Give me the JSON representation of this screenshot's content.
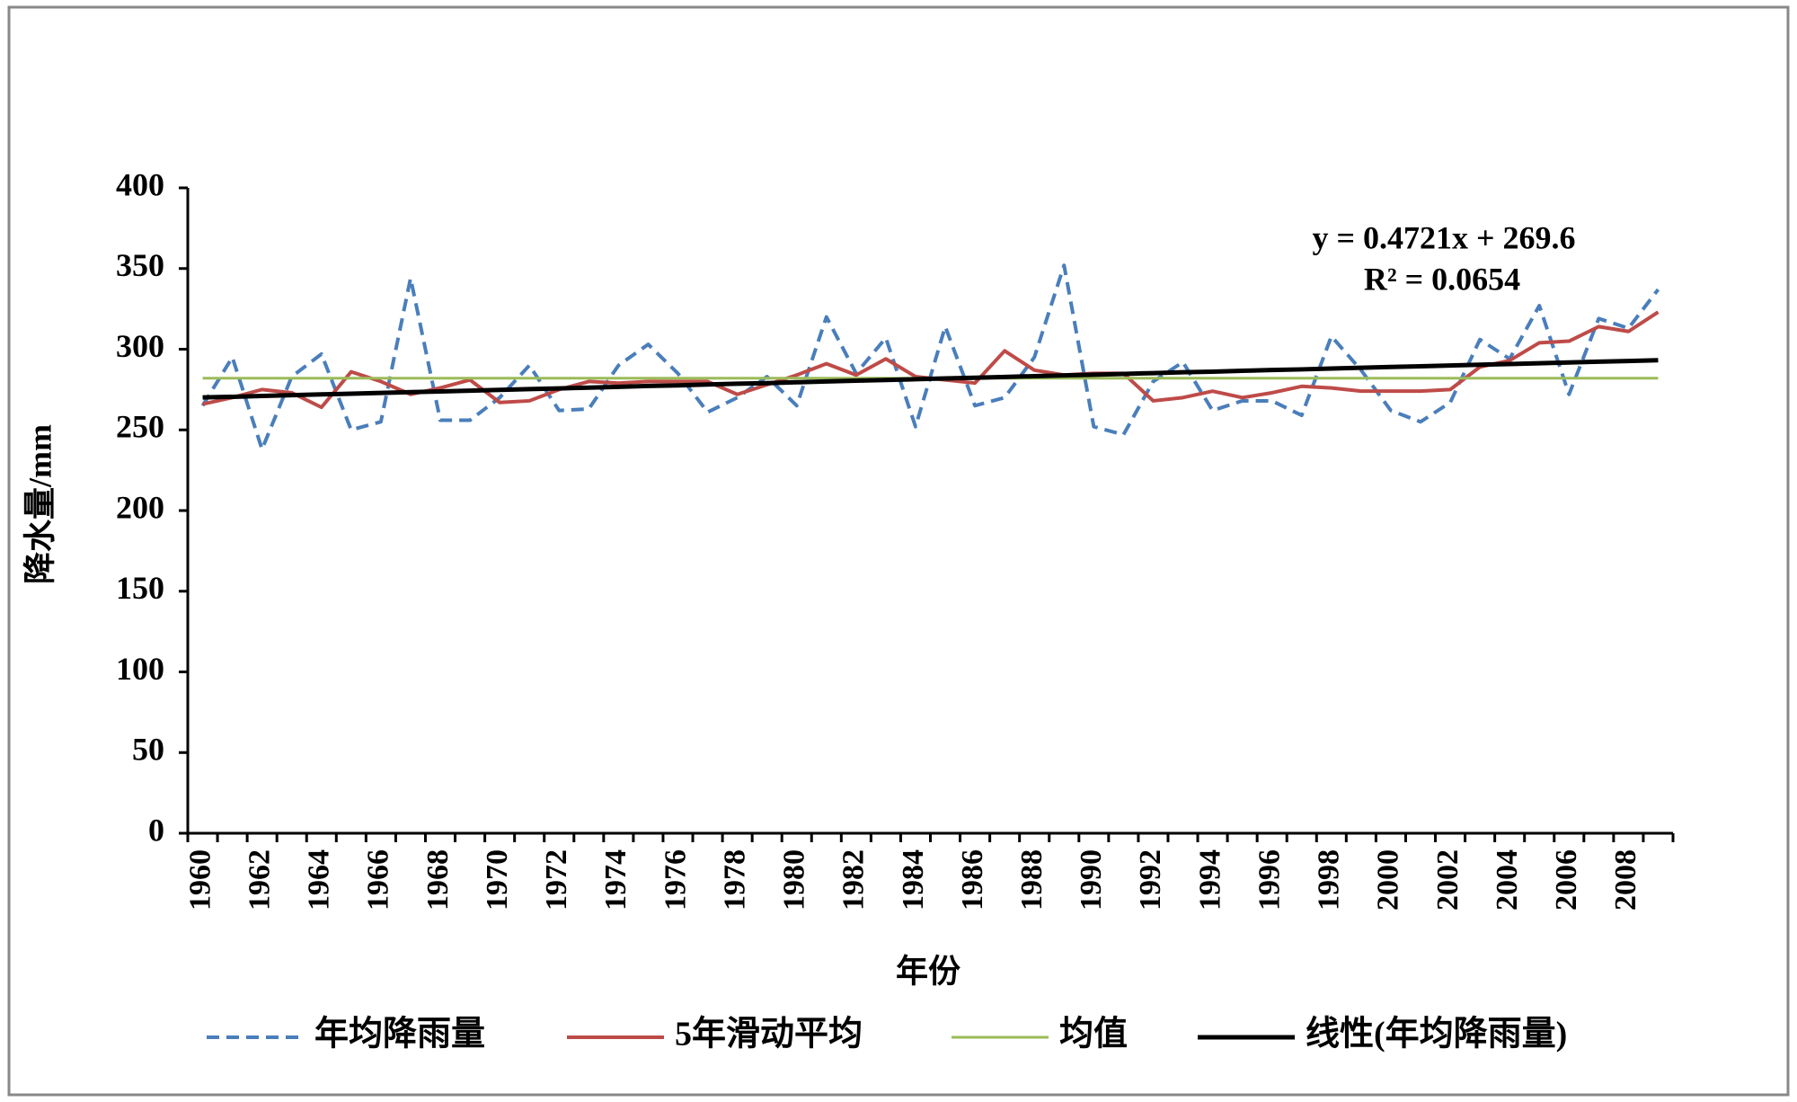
{
  "chart_data": {
    "type": "line",
    "x_label": "年份",
    "y_label": "降水量/mm",
    "categories": [
      1960,
      null,
      1962,
      null,
      1964,
      null,
      1966,
      null,
      1968,
      null,
      1970,
      null,
      1972,
      null,
      1974,
      null,
      1976,
      null,
      1978,
      null,
      1980,
      null,
      1982,
      null,
      1984,
      null,
      1986,
      null,
      1988,
      null,
      1990,
      null,
      1992,
      null,
      1994,
      null,
      1996,
      null,
      1998,
      null,
      2000,
      null,
      2002,
      null,
      2004,
      null,
      2006,
      null,
      2008,
      null
    ],
    "ylim": [
      0,
      400
    ],
    "yticks": [
      0,
      50,
      100,
      150,
      200,
      250,
      300,
      350,
      400
    ],
    "grid": false,
    "legend": "bottom",
    "annotations": [
      "y = 0.4721x + 269.6",
      "R² = 0.0654"
    ],
    "series": [
      {
        "name": "年均降雨量",
        "color": "#4a7ebb",
        "line_style": "dashed",
        "values": [
          265,
          295,
          238,
          283,
          297,
          250,
          255,
          344,
          256,
          256,
          270,
          290,
          262,
          263,
          290,
          303,
          285,
          261,
          270,
          283,
          265,
          320,
          285,
          307,
          252,
          314,
          265,
          270,
          295,
          352,
          252,
          247,
          280,
          292,
          262,
          268,
          268,
          259,
          308,
          287,
          262,
          255,
          267,
          306,
          294,
          327,
          272,
          319,
          313,
          337
        ]
      },
      {
        "name": "5年滑动平均",
        "color": "#be4b48",
        "line_style": "solid",
        "values": [
          266,
          270,
          275,
          273,
          264,
          286,
          280,
          272,
          276,
          281,
          267,
          268,
          275,
          280,
          279,
          280,
          280,
          280,
          272,
          278,
          284,
          291,
          284,
          294,
          283,
          281,
          279,
          299,
          287,
          284,
          285,
          285,
          268,
          270,
          274,
          270,
          273,
          277,
          276,
          274,
          274,
          274,
          275,
          289,
          293,
          304,
          305,
          314,
          311,
          323
        ]
      },
      {
        "name": "均值",
        "color": "#9bbb59",
        "line_style": "thin",
        "values": [
          282,
          282,
          282,
          282,
          282,
          282,
          282,
          282,
          282,
          282,
          282,
          282,
          282,
          282,
          282,
          282,
          282,
          282,
          282,
          282,
          282,
          282,
          282,
          282,
          282,
          282,
          282,
          282,
          282,
          282,
          282,
          282,
          282,
          282,
          282,
          282,
          282,
          282,
          282,
          282,
          282,
          282,
          282,
          282,
          282,
          282,
          282,
          282,
          282,
          282
        ]
      },
      {
        "name": "线性(年均降雨量)",
        "color": "#000000",
        "line_style": "thick",
        "values": [
          270.1,
          270.5,
          271.0,
          271.5,
          272.0,
          272.4,
          272.9,
          273.4,
          273.8,
          274.3,
          274.8,
          275.3,
          275.7,
          276.2,
          276.7,
          277.2,
          277.6,
          278.1,
          278.6,
          279.0,
          279.5,
          280.0,
          280.5,
          280.9,
          281.4,
          281.9,
          282.3,
          282.8,
          283.3,
          283.8,
          284.2,
          284.7,
          285.2,
          285.7,
          286.1,
          286.6,
          287.1,
          287.5,
          288.0,
          288.5,
          289.0,
          289.4,
          289.9,
          290.4,
          290.8,
          291.3,
          291.8,
          292.3,
          292.7,
          293.2
        ]
      }
    ]
  }
}
